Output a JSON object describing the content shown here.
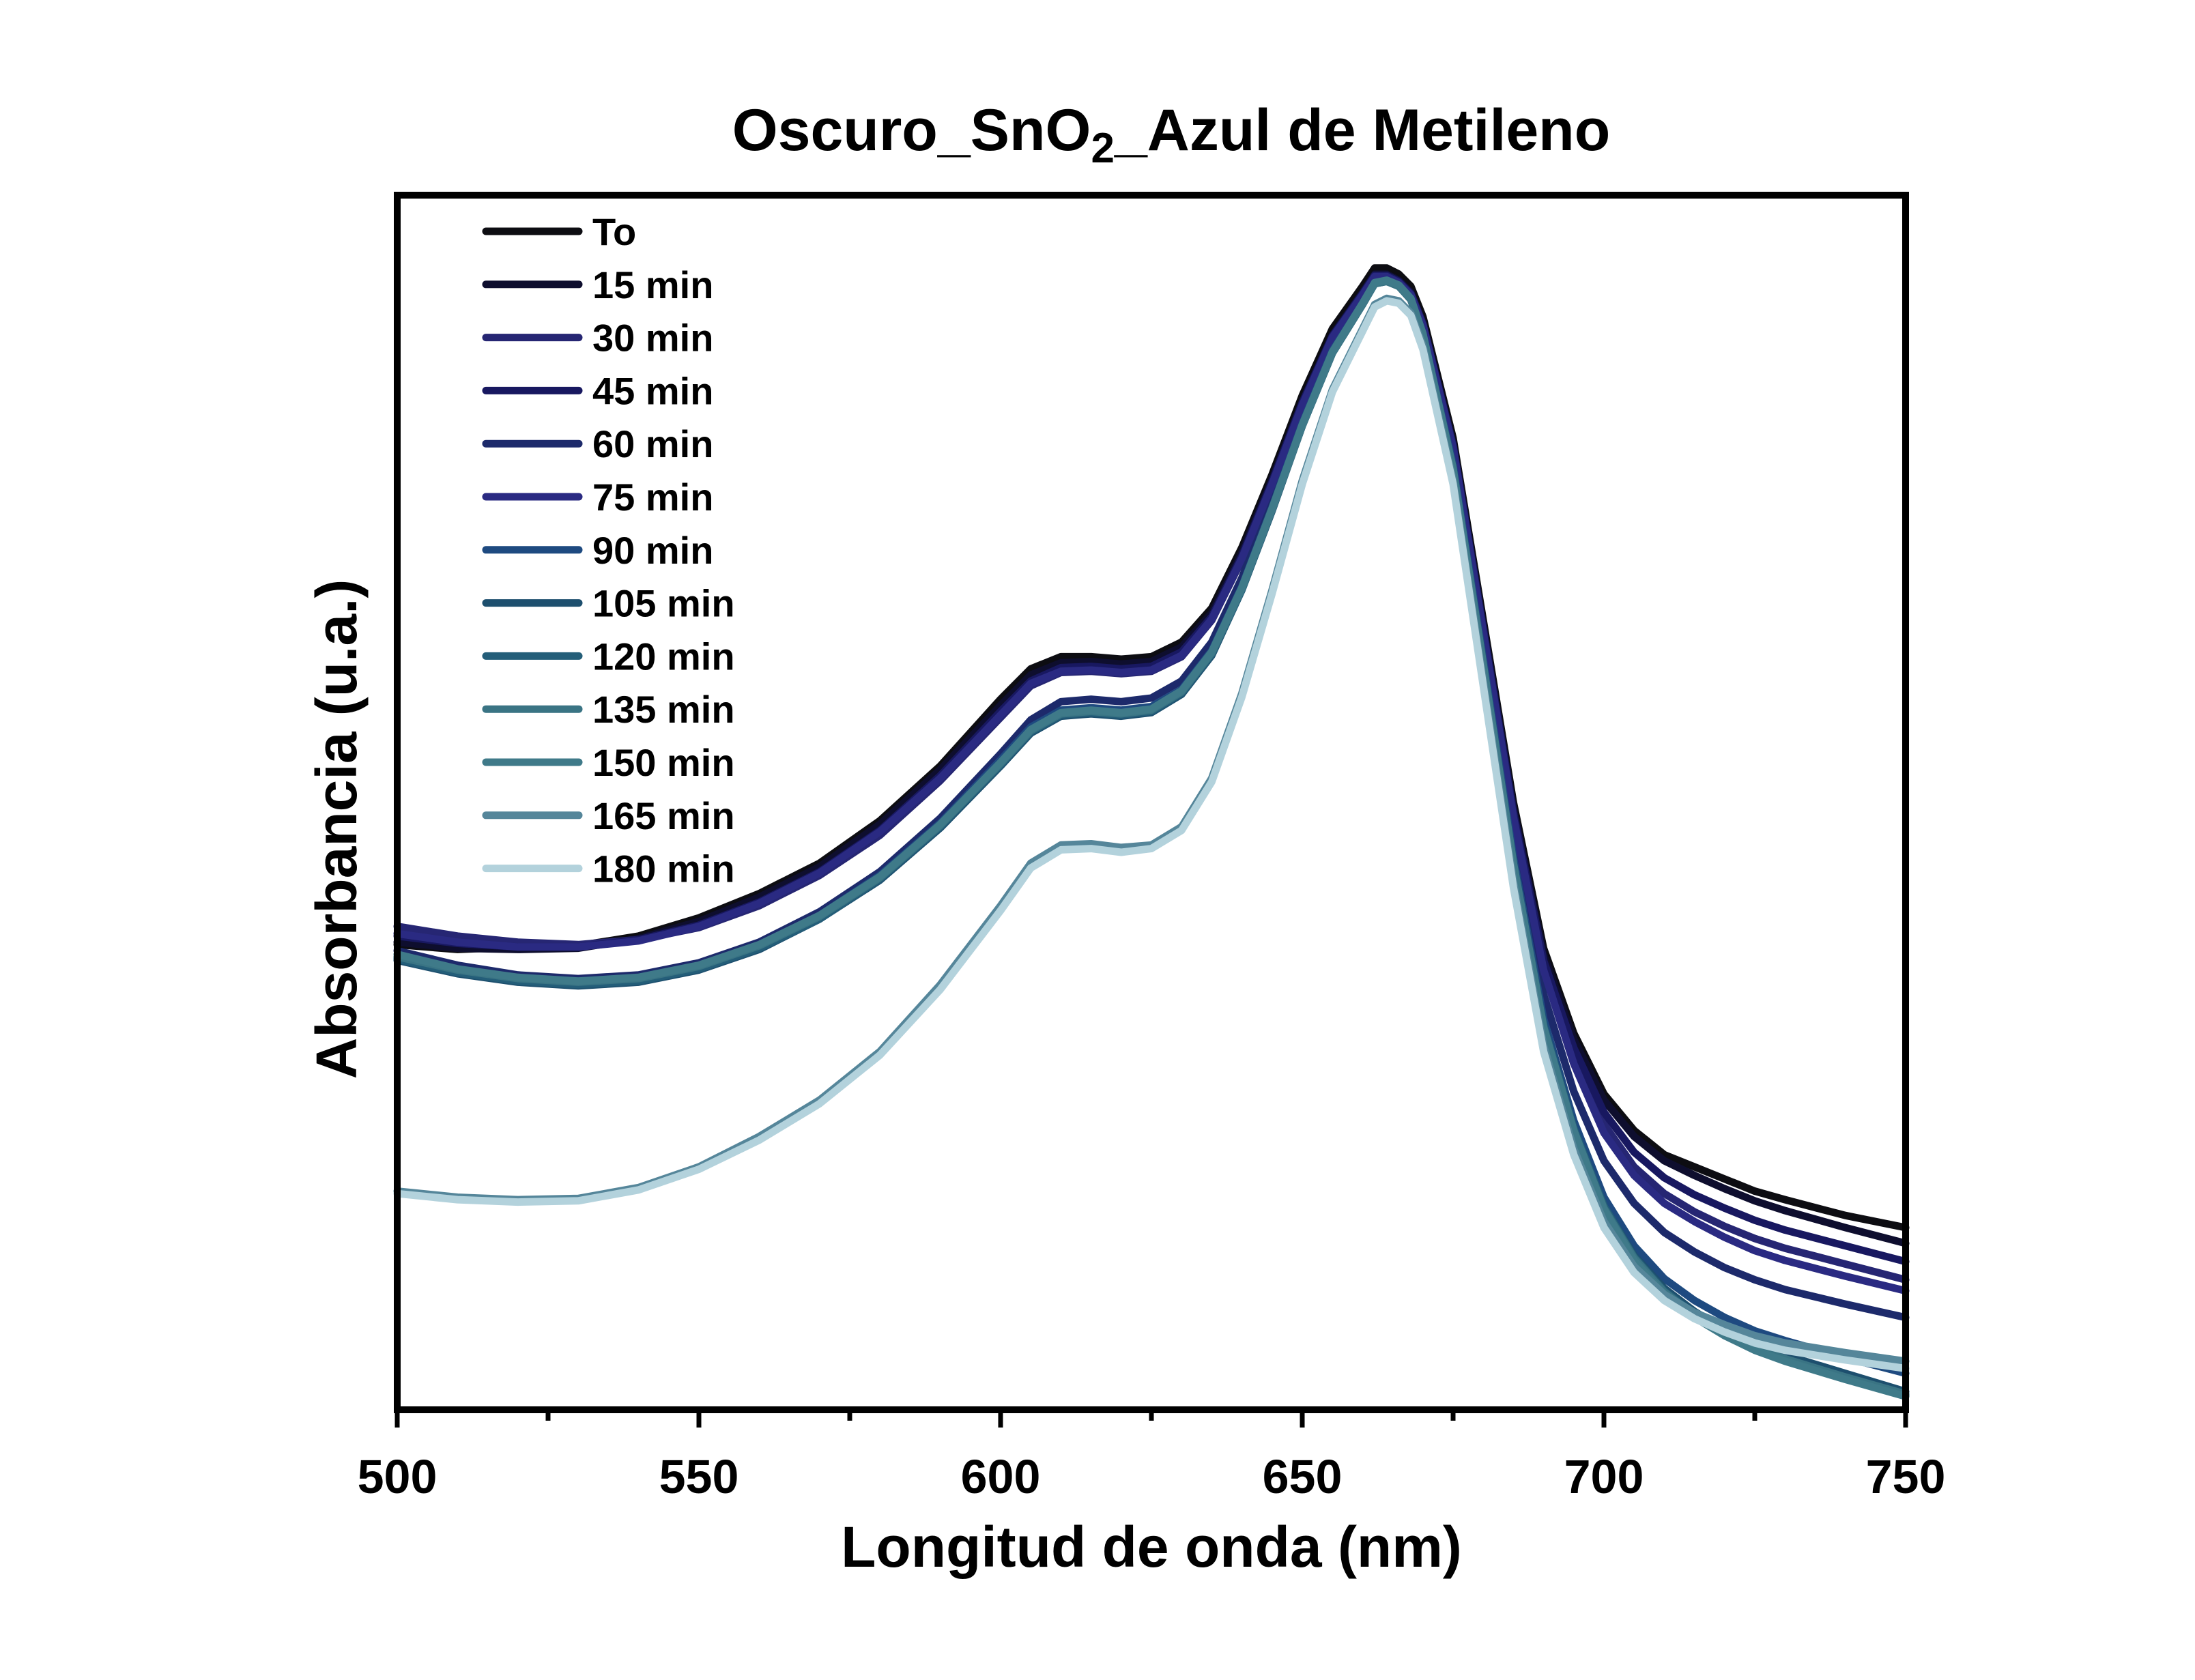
{
  "chart_data": {
    "type": "line",
    "title": {
      "prefix": "Oscuro_SnO",
      "subscript": "2",
      "suffix": "_Azul de Metileno"
    },
    "xlabel": "Longitud de onda (nm)",
    "ylabel": "Absorbancia (u.a.)",
    "xlim": [
      500,
      750
    ],
    "ylim": [
      0,
      1.0
    ],
    "x_ticks": [
      "500",
      "550",
      "600",
      "650",
      "700",
      "750"
    ],
    "y_tick_labels": false,
    "legend_position": "top-left",
    "x": [
      500,
      510,
      520,
      530,
      540,
      550,
      560,
      570,
      580,
      590,
      600,
      605,
      610,
      615,
      620,
      625,
      630,
      635,
      640,
      645,
      650,
      655,
      660,
      662,
      664,
      666,
      668,
      670,
      675,
      680,
      685,
      690,
      695,
      700,
      705,
      710,
      715,
      720,
      725,
      730,
      740,
      750
    ],
    "series": [
      {
        "name": "To",
        "color": "#0d0d12",
        "values": [
          0.383,
          0.379,
          0.381,
          0.382,
          0.39,
          0.405,
          0.425,
          0.45,
          0.485,
          0.53,
          0.585,
          0.61,
          0.62,
          0.62,
          0.618,
          0.62,
          0.632,
          0.66,
          0.71,
          0.77,
          0.835,
          0.89,
          0.925,
          0.94,
          0.94,
          0.935,
          0.925,
          0.9,
          0.8,
          0.65,
          0.5,
          0.38,
          0.31,
          0.26,
          0.23,
          0.21,
          0.2,
          0.19,
          0.18,
          0.173,
          0.16,
          0.15
        ]
      },
      {
        "name": "15 min",
        "color": "#0e0e2e",
        "values": [
          0.385,
          0.38,
          0.379,
          0.38,
          0.388,
          0.402,
          0.422,
          0.447,
          0.482,
          0.527,
          0.58,
          0.605,
          0.615,
          0.616,
          0.614,
          0.616,
          0.628,
          0.656,
          0.706,
          0.766,
          0.83,
          0.885,
          0.92,
          0.935,
          0.935,
          0.93,
          0.92,
          0.895,
          0.795,
          0.645,
          0.495,
          0.375,
          0.305,
          0.255,
          0.225,
          0.205,
          0.193,
          0.182,
          0.172,
          0.164,
          0.15,
          0.137
        ]
      },
      {
        "name": "30 min",
        "color": "#262673",
        "values": [
          0.398,
          0.39,
          0.385,
          0.383,
          0.387,
          0.397,
          0.415,
          0.44,
          0.473,
          0.518,
          0.57,
          0.596,
          0.607,
          0.608,
          0.606,
          0.608,
          0.62,
          0.65,
          0.7,
          0.762,
          0.828,
          0.884,
          0.919,
          0.934,
          0.934,
          0.929,
          0.919,
          0.894,
          0.793,
          0.642,
          0.49,
          0.365,
          0.29,
          0.235,
          0.2,
          0.178,
          0.163,
          0.151,
          0.141,
          0.133,
          0.12,
          0.107
        ]
      },
      {
        "name": "45 min",
        "color": "#181860",
        "values": [
          0.39,
          0.384,
          0.381,
          0.381,
          0.387,
          0.399,
          0.418,
          0.443,
          0.477,
          0.522,
          0.575,
          0.6,
          0.611,
          0.612,
          0.61,
          0.612,
          0.624,
          0.653,
          0.703,
          0.764,
          0.829,
          0.884,
          0.919,
          0.934,
          0.934,
          0.929,
          0.919,
          0.894,
          0.794,
          0.643,
          0.492,
          0.37,
          0.298,
          0.245,
          0.212,
          0.191,
          0.177,
          0.166,
          0.156,
          0.148,
          0.135,
          0.122
        ]
      },
      {
        "name": "60 min",
        "color": "#1d2a6b",
        "values": [
          0.378,
          0.366,
          0.358,
          0.355,
          0.358,
          0.368,
          0.385,
          0.41,
          0.443,
          0.487,
          0.54,
          0.568,
          0.583,
          0.585,
          0.583,
          0.586,
          0.6,
          0.632,
          0.685,
          0.75,
          0.818,
          0.876,
          0.914,
          0.93,
          0.932,
          0.928,
          0.918,
          0.89,
          0.785,
          0.628,
          0.47,
          0.342,
          0.262,
          0.205,
          0.17,
          0.146,
          0.13,
          0.117,
          0.107,
          0.099,
          0.087,
          0.076
        ]
      },
      {
        "name": "75 min",
        "color": "#2a2a82",
        "values": [
          0.392,
          0.385,
          0.381,
          0.381,
          0.386,
          0.398,
          0.417,
          0.442,
          0.476,
          0.52,
          0.572,
          0.598,
          0.608,
          0.609,
          0.607,
          0.609,
          0.621,
          0.651,
          0.701,
          0.762,
          0.827,
          0.883,
          0.918,
          0.933,
          0.933,
          0.928,
          0.918,
          0.893,
          0.792,
          0.64,
          0.488,
          0.362,
          0.285,
          0.228,
          0.193,
          0.17,
          0.155,
          0.142,
          0.131,
          0.123,
          0.11,
          0.098
        ]
      },
      {
        "name": "90 min",
        "color": "#1e4a80",
        "values": [
          0.372,
          0.362,
          0.356,
          0.353,
          0.356,
          0.366,
          0.383,
          0.407,
          0.44,
          0.483,
          0.535,
          0.562,
          0.576,
          0.578,
          0.576,
          0.579,
          0.593,
          0.625,
          0.678,
          0.743,
          0.812,
          0.872,
          0.911,
          0.928,
          0.93,
          0.926,
          0.915,
          0.886,
          0.778,
          0.618,
          0.455,
          0.322,
          0.238,
          0.175,
          0.135,
          0.108,
          0.09,
          0.076,
          0.065,
          0.057,
          0.043,
          0.03
        ]
      },
      {
        "name": "105 min",
        "color": "#1d4f6e",
        "values": [
          0.37,
          0.359,
          0.352,
          0.349,
          0.352,
          0.362,
          0.379,
          0.404,
          0.436,
          0.479,
          0.53,
          0.557,
          0.571,
          0.573,
          0.571,
          0.574,
          0.589,
          0.621,
          0.675,
          0.74,
          0.81,
          0.87,
          0.91,
          0.927,
          0.929,
          0.925,
          0.914,
          0.885,
          0.775,
          0.614,
          0.45,
          0.317,
          0.232,
          0.168,
          0.127,
          0.1,
          0.081,
          0.066,
          0.054,
          0.045,
          0.03,
          0.015
        ]
      },
      {
        "name": "120 min",
        "color": "#245e79",
        "values": [
          0.371,
          0.36,
          0.353,
          0.35,
          0.353,
          0.363,
          0.38,
          0.404,
          0.437,
          0.48,
          0.531,
          0.558,
          0.572,
          0.574,
          0.572,
          0.575,
          0.59,
          0.622,
          0.675,
          0.741,
          0.81,
          0.87,
          0.91,
          0.927,
          0.929,
          0.925,
          0.914,
          0.885,
          0.775,
          0.614,
          0.45,
          0.317,
          0.232,
          0.168,
          0.126,
          0.098,
          0.079,
          0.063,
          0.051,
          0.042,
          0.026,
          0.012
        ]
      },
      {
        "name": "135 min",
        "color": "#3a7484",
        "values": [
          0.373,
          0.362,
          0.355,
          0.352,
          0.355,
          0.365,
          0.382,
          0.406,
          0.438,
          0.481,
          0.532,
          0.559,
          0.573,
          0.575,
          0.573,
          0.576,
          0.591,
          0.623,
          0.676,
          0.741,
          0.81,
          0.87,
          0.91,
          0.927,
          0.929,
          0.925,
          0.914,
          0.885,
          0.774,
          0.613,
          0.449,
          0.315,
          0.23,
          0.166,
          0.125,
          0.097,
          0.078,
          0.063,
          0.051,
          0.042,
          0.027,
          0.013
        ]
      },
      {
        "name": "150 min",
        "color": "#3f7a89",
        "values": [
          0.375,
          0.363,
          0.356,
          0.353,
          0.356,
          0.366,
          0.383,
          0.407,
          0.439,
          0.482,
          0.533,
          0.56,
          0.574,
          0.576,
          0.574,
          0.577,
          0.592,
          0.624,
          0.677,
          0.742,
          0.811,
          0.871,
          0.911,
          0.928,
          0.93,
          0.926,
          0.915,
          0.886,
          0.775,
          0.614,
          0.45,
          0.315,
          0.23,
          0.165,
          0.123,
          0.095,
          0.076,
          0.061,
          0.049,
          0.04,
          0.025,
          0.011
        ]
      },
      {
        "name": "165 min",
        "color": "#55869a",
        "values": [
          0.18,
          0.175,
          0.173,
          0.174,
          0.183,
          0.2,
          0.225,
          0.255,
          0.295,
          0.35,
          0.415,
          0.45,
          0.465,
          0.466,
          0.463,
          0.465,
          0.48,
          0.52,
          0.59,
          0.675,
          0.765,
          0.84,
          0.89,
          0.91,
          0.915,
          0.913,
          0.903,
          0.876,
          0.765,
          0.6,
          0.435,
          0.3,
          0.215,
          0.155,
          0.118,
          0.095,
          0.08,
          0.07,
          0.061,
          0.055,
          0.047,
          0.04
        ]
      },
      {
        "name": "180 min",
        "color": "#b3d2dc",
        "values": [
          0.178,
          0.173,
          0.171,
          0.172,
          0.181,
          0.198,
          0.222,
          0.252,
          0.292,
          0.346,
          0.411,
          0.446,
          0.461,
          0.462,
          0.459,
          0.462,
          0.477,
          0.517,
          0.587,
          0.672,
          0.762,
          0.838,
          0.888,
          0.908,
          0.913,
          0.911,
          0.901,
          0.873,
          0.762,
          0.596,
          0.43,
          0.295,
          0.21,
          0.15,
          0.113,
          0.09,
          0.075,
          0.064,
          0.055,
          0.049,
          0.041,
          0.034
        ]
      }
    ]
  }
}
